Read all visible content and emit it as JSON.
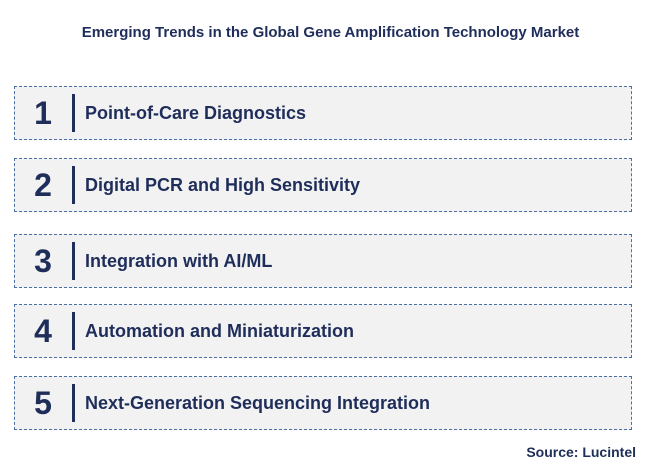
{
  "title": "Emerging Trends in the Global Gene Amplification Technology Market",
  "trends": [
    {
      "number": "1",
      "label": "Point-of-Care Diagnostics"
    },
    {
      "number": "2",
      "label": "Digital PCR and High Sensitivity"
    },
    {
      "number": "3",
      "label": "Integration with AI/ML"
    },
    {
      "number": "4",
      "label": "Automation and Miniaturization"
    },
    {
      "number": "5",
      "label": "Next-Generation Sequencing Integration"
    }
  ],
  "source": "Source: Lucintel",
  "colors": {
    "text": "#1f2d5a",
    "box_fill": "#f2f2f2",
    "box_border": "#4a6fa5"
  }
}
